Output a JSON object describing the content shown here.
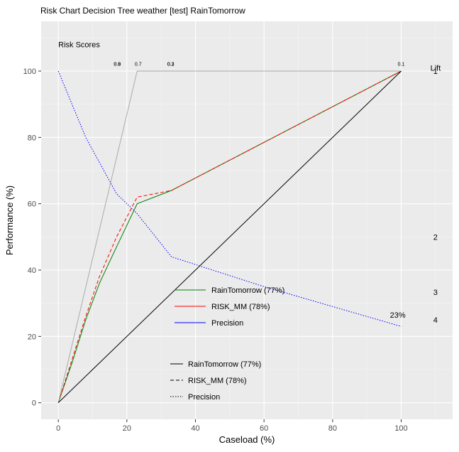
{
  "chart_data": {
    "type": "line",
    "title": "Risk Chart Decision Tree weather [test] RainTomorrow",
    "xlabel": "Caseload (%)",
    "ylabel": "Performance (%)",
    "xlim": [
      -5,
      115
    ],
    "ylim": [
      -5,
      115
    ],
    "x_ticks": [
      0,
      20,
      40,
      60,
      80,
      100
    ],
    "y_ticks": [
      0,
      20,
      40,
      60,
      80,
      100
    ],
    "grid": true,
    "annotations": {
      "risk_scores_label": "Risk Scores",
      "lift_label": "Lift",
      "lift_ticks": [
        "1",
        "2",
        "3",
        "4"
      ],
      "precision_end_label": "23%",
      "risk_score_labels": [
        "0.9",
        "0.8",
        "0.7",
        "0.3",
        "0.2",
        "0.1"
      ]
    },
    "series": [
      {
        "name": "RainTomorrow (77%)",
        "color": "#008000",
        "dash": "solid",
        "x": [
          0,
          4,
          8,
          12,
          17,
          23,
          33,
          100
        ],
        "y": [
          0,
          12,
          25,
          36,
          47,
          60,
          64,
          100
        ]
      },
      {
        "name": "RISK_MM (78%)",
        "color": "#ff0000",
        "dash": "dashed",
        "x": [
          0,
          4,
          8,
          12,
          17,
          23,
          33,
          100
        ],
        "y": [
          0,
          13,
          26,
          38,
          50,
          62,
          64,
          100
        ]
      },
      {
        "name": "Precision",
        "color": "#0000ff",
        "dash": "dotted",
        "x": [
          0,
          8,
          17,
          23,
          33,
          60,
          100
        ],
        "y": [
          100,
          80,
          63,
          57,
          44,
          35,
          23
        ]
      },
      {
        "name": "Optimal",
        "color": "#aaaaaa",
        "dash": "solid",
        "x": [
          0,
          23,
          100
        ],
        "y": [
          0,
          100,
          100
        ]
      },
      {
        "name": "Diagonal",
        "color": "#000000",
        "dash": "solid",
        "x": [
          0,
          100
        ],
        "y": [
          0,
          100
        ]
      }
    ],
    "legend_color": [
      {
        "label": "RainTomorrow (77%)",
        "color": "#008000"
      },
      {
        "label": "RISK_MM (78%)",
        "color": "#ff0000"
      },
      {
        "label": "Precision",
        "color": "#0000ff"
      }
    ],
    "legend_linetype": [
      {
        "label": "RainTomorrow (77%)",
        "dash": "solid"
      },
      {
        "label": "RISK_MM (78%)",
        "dash": "dashed"
      },
      {
        "label": "Precision",
        "dash": "dotted"
      }
    ]
  }
}
